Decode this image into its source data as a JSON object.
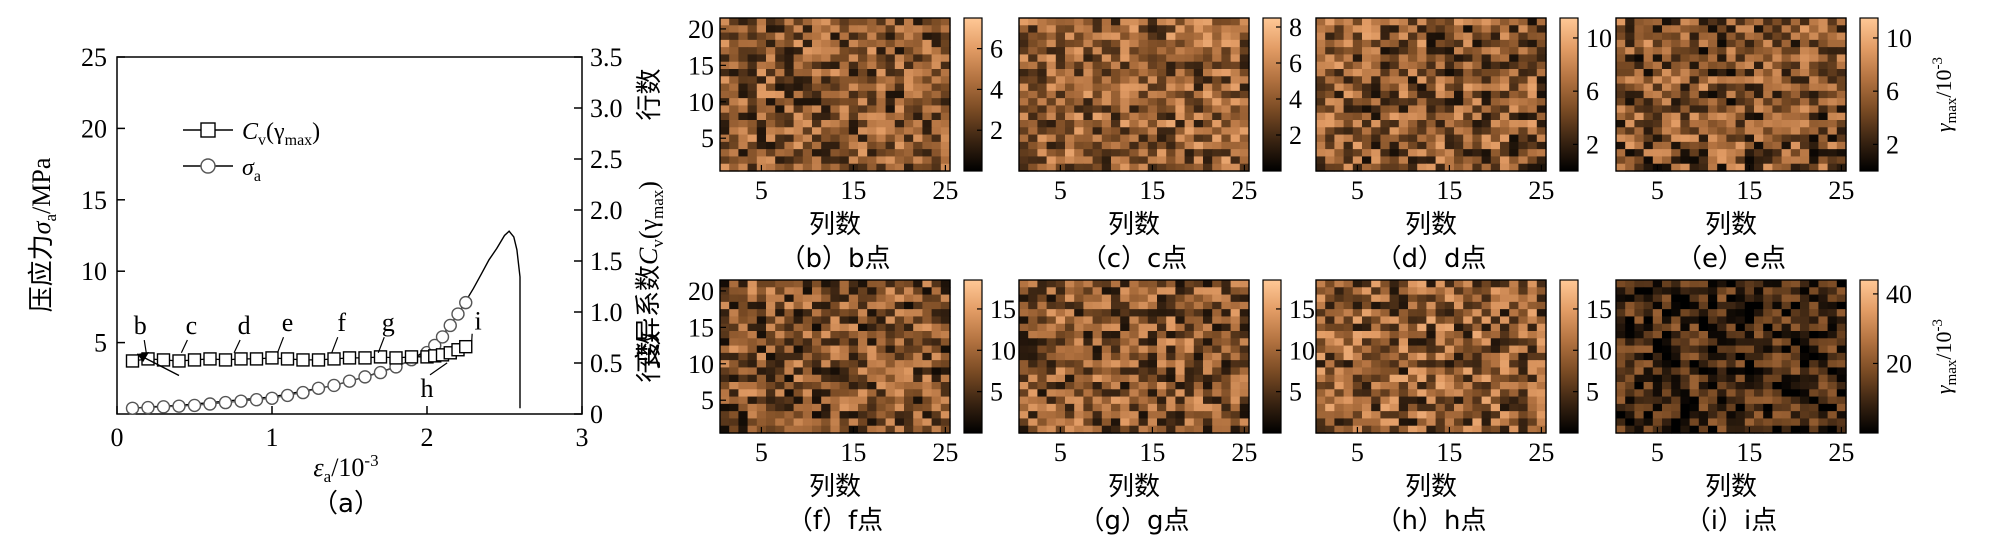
{
  "chart_data": [
    {
      "panel": "a",
      "type": "line",
      "caption": "（a）",
      "xlabel_main": "ε",
      "xlabel_sub": "a",
      "xlabel_unit": "/10",
      "xlabel_exp": "-3",
      "ylabel_left": {
        "prefix": "压应力",
        "sym": "σ",
        "sub": "a",
        "unit": "/MPa"
      },
      "ylabel_right": {
        "prefix": "变异系数",
        "sym": "C",
        "sub": "v",
        "arg_open": "(γ",
        "arg_sub": "max",
        "arg_close": ")"
      },
      "xlim": [
        0,
        3
      ],
      "xticks": [
        0,
        1,
        2,
        3
      ],
      "ylim_left": [
        0,
        25
      ],
      "yticks_left": [
        5,
        10,
        15,
        20,
        25
      ],
      "ylim_right": [
        0,
        3.5
      ],
      "yticks_right": [
        "0",
        "0.5",
        "1.0",
        "1.5",
        "2.0",
        "2.5",
        "3.0",
        "3.5"
      ],
      "yticks_right_values": [
        0,
        0.5,
        1.0,
        1.5,
        2.0,
        2.5,
        3.0,
        3.5
      ],
      "legend": [
        {
          "sym": "C",
          "sub": "v",
          "arg_open": "(γ",
          "arg_sub": "max",
          "arg_close": ")",
          "marker": "square"
        },
        {
          "sym": "σ",
          "sub": "a",
          "marker": "circle"
        }
      ],
      "stress_curve": {
        "x": [
          0.1,
          0.2,
          0.4,
          0.6,
          0.8,
          1.0,
          1.2,
          1.4,
          1.6,
          1.8,
          1.9,
          2.0,
          2.1,
          2.2,
          2.3,
          2.35,
          2.4,
          2.45,
          2.5,
          2.53,
          2.56,
          2.58,
          2.6,
          2.6
        ],
        "y": [
          0.4,
          0.5,
          0.6,
          0.8,
          1.0,
          1.2,
          1.6,
          2.0,
          2.6,
          3.3,
          3.8,
          4.5,
          5.5,
          7.0,
          8.8,
          9.8,
          10.8,
          11.6,
          12.5,
          12.8,
          12.4,
          11.5,
          9.6,
          0.4
        ]
      },
      "cv_markers": {
        "x": [
          0.1,
          0.2,
          0.3,
          0.4,
          0.5,
          0.6,
          0.7,
          0.8,
          0.9,
          1.0,
          1.1,
          1.2,
          1.3,
          1.4,
          1.5,
          1.6,
          1.7,
          1.8,
          1.9,
          2.0,
          2.05,
          2.1,
          2.15,
          2.2,
          2.25
        ],
        "y": [
          0.52,
          0.54,
          0.53,
          0.52,
          0.53,
          0.54,
          0.53,
          0.54,
          0.54,
          0.55,
          0.54,
          0.53,
          0.53,
          0.54,
          0.55,
          0.55,
          0.56,
          0.55,
          0.56,
          0.56,
          0.57,
          0.58,
          0.6,
          0.63,
          0.66
        ]
      },
      "sigma_markers": {
        "x": [
          0.1,
          0.2,
          0.3,
          0.4,
          0.5,
          0.6,
          0.7,
          0.8,
          0.9,
          1.0,
          1.1,
          1.2,
          1.3,
          1.4,
          1.5,
          1.6,
          1.7,
          1.8,
          1.9,
          2.0,
          2.05,
          2.1,
          2.15,
          2.2,
          2.25
        ],
        "y": [
          0.4,
          0.45,
          0.5,
          0.55,
          0.6,
          0.7,
          0.8,
          0.9,
          1.0,
          1.1,
          1.3,
          1.5,
          1.8,
          2.0,
          2.3,
          2.6,
          2.9,
          3.3,
          3.8,
          4.3,
          4.8,
          5.4,
          6.2,
          7.0,
          7.8
        ]
      },
      "point_labels": [
        {
          "text": "b",
          "x": 0.15,
          "y": 5.6
        },
        {
          "text": "c",
          "x": 0.48,
          "y": 5.6
        },
        {
          "text": "d",
          "x": 0.82,
          "y": 5.6
        },
        {
          "text": "e",
          "x": 1.1,
          "y": 5.8
        },
        {
          "text": "f",
          "x": 1.45,
          "y": 5.8
        },
        {
          "text": "g",
          "x": 1.75,
          "y": 5.8
        },
        {
          "text": "h",
          "x": 2.0,
          "y": 1.2
        },
        {
          "text": "i",
          "x": 2.33,
          "y": 5.9
        }
      ]
    },
    {
      "panel": "b",
      "type": "heatmap",
      "caption": "（b）b点",
      "cbar_ticks": [
        "2",
        "4",
        "6"
      ],
      "cbar_max": 7.5,
      "cbar_tick_values": [
        2,
        4,
        6
      ],
      "seed": 11,
      "mean": 0.45,
      "spread": 0.35,
      "ylabel": "行数",
      "xlabel": "列数",
      "xticks": [
        "5",
        "15",
        "25"
      ],
      "yticks": [
        "5",
        "10",
        "15",
        "20"
      ],
      "show_ylabel": true,
      "show_unit": false
    },
    {
      "panel": "c",
      "type": "heatmap",
      "caption": "（c）c点",
      "cbar_ticks": [
        "2",
        "4",
        "6",
        "8"
      ],
      "cbar_max": 8.5,
      "cbar_tick_values": [
        2,
        4,
        6,
        8
      ],
      "seed": 23,
      "mean": 0.5,
      "spread": 0.35,
      "ylabel": "",
      "xlabel": "列数",
      "xticks": [
        "5",
        "15",
        "25"
      ],
      "yticks": [],
      "show_ylabel": false,
      "show_unit": false
    },
    {
      "panel": "d",
      "type": "heatmap",
      "caption": "（d）d点",
      "cbar_ticks": [
        "2",
        "6",
        "10"
      ],
      "cbar_max": 11.5,
      "cbar_tick_values": [
        2,
        6,
        10
      ],
      "seed": 37,
      "mean": 0.45,
      "spread": 0.38,
      "ylabel": "",
      "xlabel": "列数",
      "xticks": [
        "5",
        "15",
        "25"
      ],
      "yticks": [],
      "show_ylabel": false,
      "show_unit": false
    },
    {
      "panel": "e",
      "type": "heatmap",
      "caption": "（e）e点",
      "cbar_ticks": [
        "2",
        "6",
        "10"
      ],
      "cbar_max": 11.5,
      "cbar_tick_values": [
        2,
        6,
        10
      ],
      "seed": 41,
      "mean": 0.42,
      "spread": 0.38,
      "ylabel": "",
      "xlabel": "列数",
      "xticks": [
        "5",
        "15",
        "25"
      ],
      "yticks": [],
      "show_ylabel": false,
      "show_unit": true
    },
    {
      "panel": "f",
      "type": "heatmap",
      "caption": "（f）f点",
      "cbar_ticks": [
        "5",
        "10",
        "15"
      ],
      "cbar_max": 18.5,
      "cbar_tick_values": [
        5,
        10,
        15
      ],
      "seed": 53,
      "mean": 0.42,
      "spread": 0.36,
      "ylabel": "行数",
      "xlabel": "列数",
      "xticks": [
        "5",
        "15",
        "25"
      ],
      "yticks": [
        "5",
        "10",
        "15",
        "20"
      ],
      "show_ylabel": true,
      "show_unit": false
    },
    {
      "panel": "g",
      "type": "heatmap",
      "caption": "（g）g点",
      "cbar_ticks": [
        "5",
        "10",
        "15"
      ],
      "cbar_max": 18.5,
      "cbar_tick_values": [
        5,
        10,
        15
      ],
      "seed": 67,
      "mean": 0.45,
      "spread": 0.36,
      "ylabel": "",
      "xlabel": "列数",
      "xticks": [
        "5",
        "15",
        "25"
      ],
      "yticks": [],
      "show_ylabel": false,
      "show_unit": false
    },
    {
      "panel": "h",
      "type": "heatmap",
      "caption": "（h）h点",
      "cbar_ticks": [
        "5",
        "10",
        "15"
      ],
      "cbar_max": 18.5,
      "cbar_tick_values": [
        5,
        10,
        15
      ],
      "seed": 79,
      "mean": 0.48,
      "spread": 0.38,
      "ylabel": "",
      "xlabel": "列数",
      "xticks": [
        "5",
        "15",
        "25"
      ],
      "yticks": [],
      "show_ylabel": false,
      "show_unit": false
    },
    {
      "panel": "i",
      "type": "heatmap",
      "caption": "（i）i点",
      "cbar_ticks": [
        "20",
        "40"
      ],
      "cbar_max": 44,
      "cbar_tick_values": [
        20,
        40
      ],
      "seed": 97,
      "mean": 0.22,
      "spread": 0.3,
      "ylabel": "",
      "xlabel": "列数",
      "xticks": [
        "5",
        "15",
        "25"
      ],
      "yticks": [],
      "show_ylabel": false,
      "show_unit": true
    }
  ],
  "unit_label": {
    "sym": "γ",
    "sub": "max",
    "unit": "/10",
    "exp": "-3"
  },
  "colormap": [
    "#000000",
    "#3a2412",
    "#7a4b24",
    "#b27240",
    "#e29c65",
    "#ffc896"
  ]
}
